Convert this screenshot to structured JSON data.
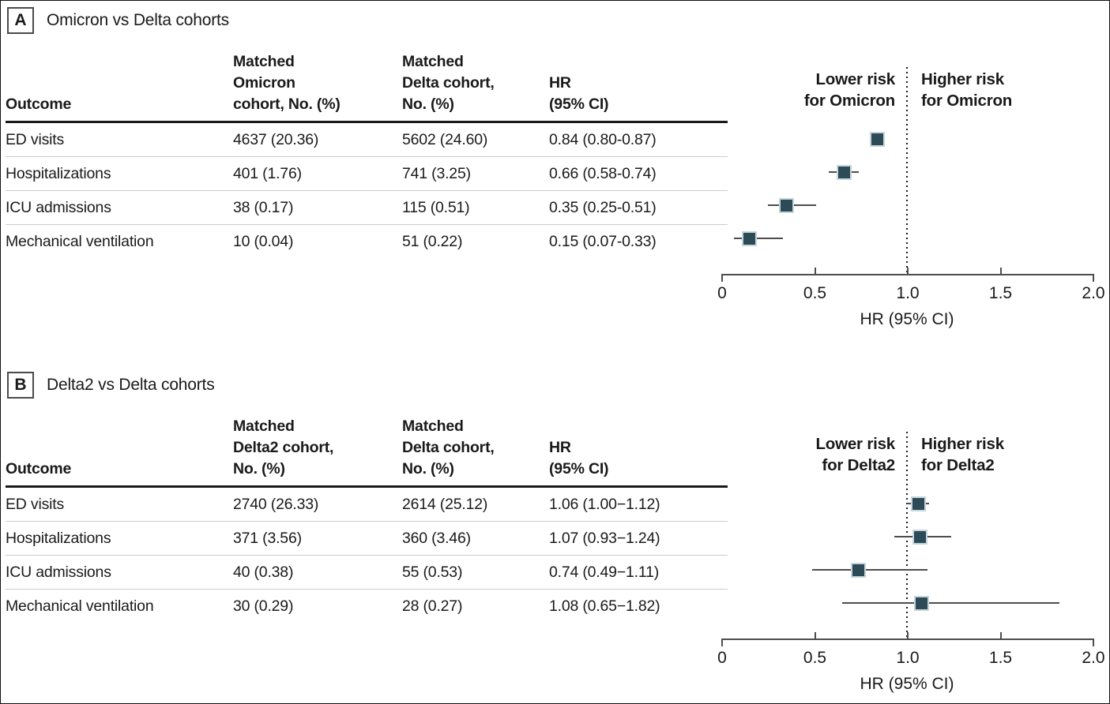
{
  "figure": {
    "panels": [
      {
        "label": "A",
        "title": "Omicron vs Delta cohorts",
        "table": {
          "headers": [
            "Outcome",
            "Matched\nOmicron\ncohort, No. (%)",
            "Matched\nDelta cohort,\nNo. (%)",
            "HR\n(95% CI)"
          ],
          "rows": [
            [
              "ED visits",
              "4637 (20.36)",
              "5602 (24.60)",
              "0.84 (0.80-0.87)"
            ],
            [
              "Hospitalizations",
              "401 (1.76)",
              "741 (3.25)",
              "0.66 (0.58-0.74)"
            ],
            [
              "ICU admissions",
              "38 (0.17)",
              "115 (0.51)",
              "0.35 (0.25-0.51)"
            ],
            [
              "Mechanical ventilation",
              "10 (0.04)",
              "51 (0.22)",
              "0.15 (0.07-0.33)"
            ]
          ]
        }
      },
      {
        "label": "B",
        "title": "Delta2 vs Delta cohorts",
        "table": {
          "headers": [
            "Outcome",
            "Matched\nDelta2 cohort,\nNo. (%)",
            "Matched\nDelta cohort,\nNo. (%)",
            "HR\n(95% CI)"
          ],
          "rows": [
            [
              "ED visits",
              "2740 (26.33)",
              "2614 (25.12)",
              "1.06 (1.00−1.12)"
            ],
            [
              "Hospitalizations",
              "371 (3.56)",
              "360 (3.46)",
              "1.07 (0.93−1.24)"
            ],
            [
              "ICU admissions",
              "40 (0.38)",
              "55 (0.53)",
              "0.74 (0.49−1.11)"
            ],
            [
              "Mechanical ventilation",
              "30 (0.29)",
              "28 (0.27)",
              "1.08 (0.65−1.82)"
            ]
          ]
        }
      }
    ]
  },
  "chart_data": [
    {
      "type": "scatter",
      "subtype": "forest-plot",
      "panel": "A",
      "title": "Omicron vs Delta cohorts",
      "categories": [
        "ED visits",
        "Hospitalizations",
        "ICU admissions",
        "Mechanical ventilation"
      ],
      "hr": [
        0.84,
        0.66,
        0.35,
        0.15
      ],
      "ci_low": [
        0.8,
        0.58,
        0.25,
        0.07
      ],
      "ci_high": [
        0.87,
        0.74,
        0.51,
        0.33
      ],
      "xlabel": "HR (95% CI)",
      "xlim": [
        0,
        2.0
      ],
      "xticks": [
        0,
        0.5,
        1.0,
        1.5,
        2.0
      ],
      "xtick_labels": [
        "0",
        "0.5",
        "1.0",
        "1.5",
        "2.0"
      ],
      "reference_line": 1.0,
      "grid": false,
      "lower_label": "Lower risk\nfor Omicron",
      "higher_label": "Higher risk\nfor Omicron"
    },
    {
      "type": "scatter",
      "subtype": "forest-plot",
      "panel": "B",
      "title": "Delta2 vs Delta cohorts",
      "categories": [
        "ED visits",
        "Hospitalizations",
        "ICU admissions",
        "Mechanical ventilation"
      ],
      "hr": [
        1.06,
        1.07,
        0.74,
        1.08
      ],
      "ci_low": [
        1.0,
        0.93,
        0.49,
        0.65
      ],
      "ci_high": [
        1.12,
        1.24,
        1.11,
        1.82
      ],
      "xlabel": "HR (95% CI)",
      "xlim": [
        0,
        2.0
      ],
      "xticks": [
        0,
        0.5,
        1.0,
        1.5,
        2.0
      ],
      "xtick_labels": [
        "0",
        "0.5",
        "1.0",
        "1.5",
        "2.0"
      ],
      "reference_line": 1.0,
      "grid": false,
      "lower_label": "Lower risk\nfor Delta2",
      "higher_label": "Higher risk\nfor Delta2"
    }
  ],
  "colors": {
    "marker_fill": "#2d4a57",
    "marker_edge": "#c6d6dc",
    "whisker": "#4d4d4d",
    "axis": "#4d4d4d",
    "reference_line": "#1a1a1a",
    "row_separator": "#cccccc",
    "header_rule": "#1a1a1a",
    "text": "#1a1a1a"
  }
}
